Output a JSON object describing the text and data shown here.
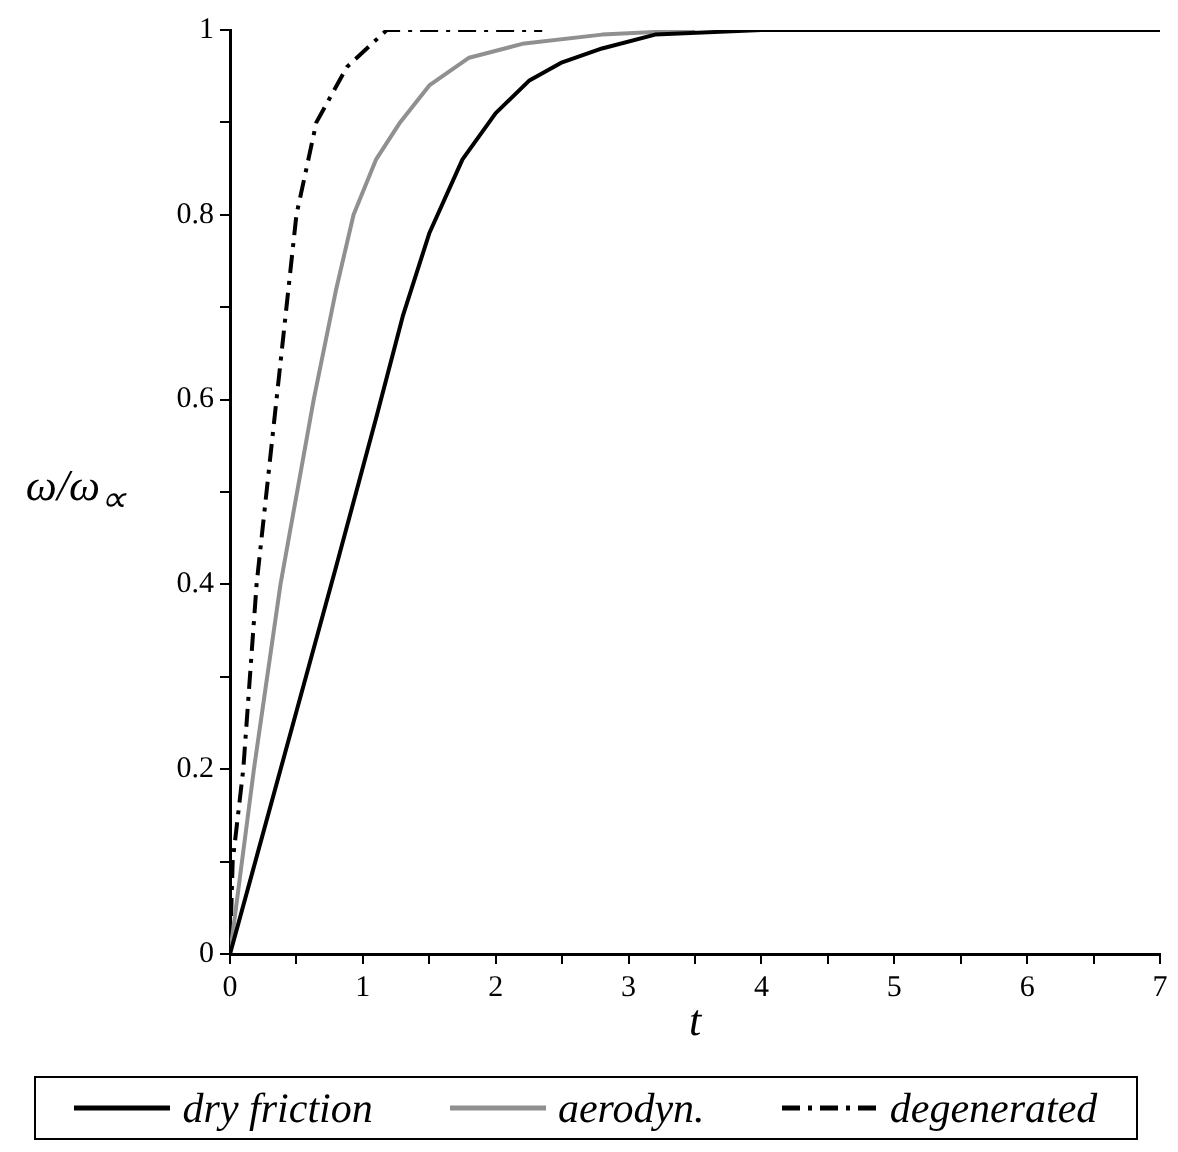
{
  "chart_data": {
    "type": "line",
    "xlabel": "t",
    "ylabel": "ω/ω$_{∝}$",
    "xlim": [
      0,
      7
    ],
    "ylim": [
      0,
      1
    ],
    "xticks": [
      0,
      {
        "value": 0.5,
        "label": null
      },
      1,
      {
        "value": 1.5,
        "label": null
      },
      2,
      {
        "value": 2.5,
        "label": null
      },
      3,
      {
        "value": 3.5,
        "label": null
      },
      4,
      {
        "value": 4.5,
        "label": null
      },
      5,
      {
        "value": 5.5,
        "label": null
      },
      6,
      {
        "value": 6.5,
        "label": null
      },
      7
    ],
    "yticks": [
      0,
      {
        "value": 0.1,
        "label": null
      },
      0.2,
      {
        "value": 0.3,
        "label": null
      },
      0.4,
      {
        "value": 0.5,
        "label": null
      },
      0.6,
      {
        "value": 0.7,
        "label": null
      },
      0.8,
      {
        "value": 0.9,
        "label": null
      },
      1
    ],
    "grid": false,
    "legend": "bottom",
    "marker": "none",
    "series": [
      {
        "name": "dry friction",
        "color": "#000000",
        "line_style": "solid",
        "x": [
          0,
          0.4,
          0.8,
          1.1,
          1.3,
          1.5,
          1.75,
          2,
          2.25,
          2.5,
          2.8,
          3.2,
          4,
          7
        ],
        "values": [
          0,
          0.21,
          0.42,
          0.58,
          0.69,
          0.78,
          0.86,
          0.91,
          0.945,
          0.965,
          0.98,
          0.995,
          1,
          1
        ]
      },
      {
        "name": "aerodyn.",
        "color": "#909090",
        "line_style": "solid",
        "x": [
          0,
          0.18,
          0.38,
          0.63,
          0.8,
          0.93,
          1.1,
          1.28,
          1.5,
          1.8,
          2.2,
          2.8,
          3.5
        ],
        "values": [
          0,
          0.2,
          0.4,
          0.6,
          0.72,
          0.8,
          0.86,
          0.9,
          0.94,
          0.97,
          0.985,
          0.995,
          1
        ]
      },
      {
        "name": "degenerated",
        "color": "#000000",
        "line_style": "dashdot",
        "x": [
          0,
          0.02,
          0.1,
          0.2,
          0.35,
          0.5,
          0.65,
          0.88,
          1.18,
          2.35
        ],
        "values": [
          0,
          0.1,
          0.2,
          0.4,
          0.6,
          0.8,
          0.9,
          0.96,
          1,
          1
        ]
      }
    ]
  }
}
